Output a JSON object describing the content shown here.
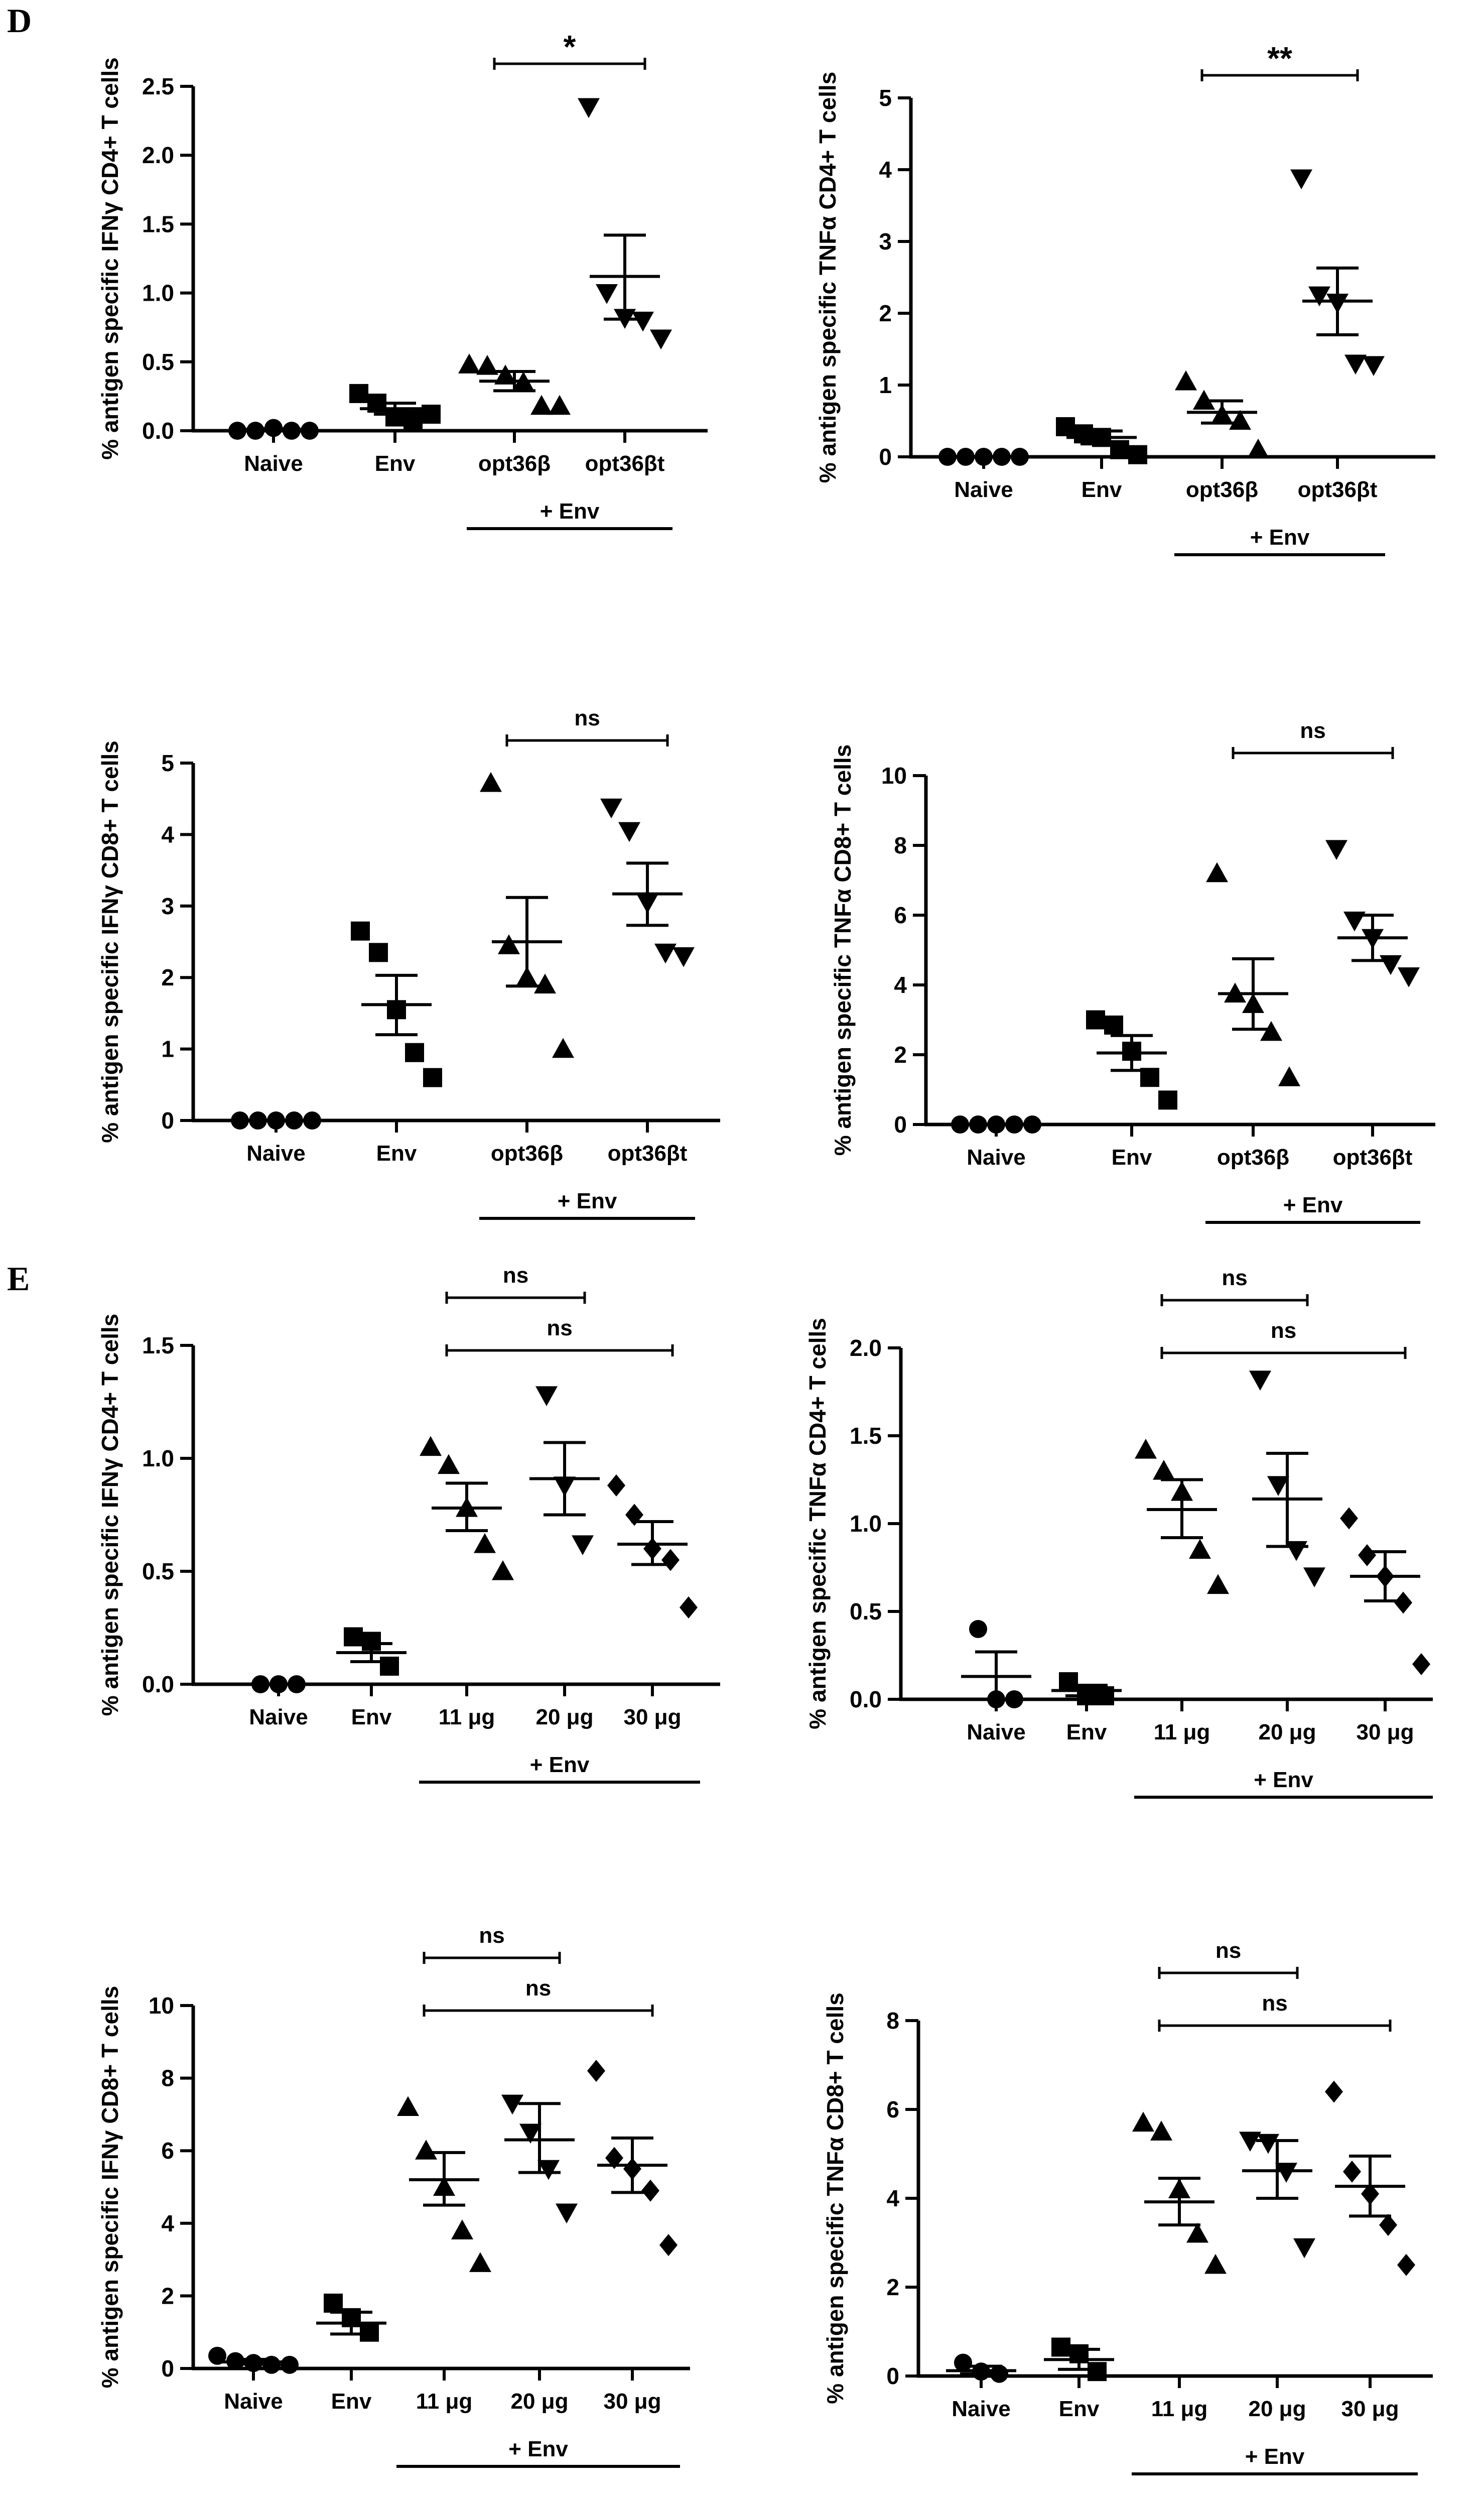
{
  "panels": {
    "D": "D",
    "E": "E"
  },
  "chart_data": [
    {
      "type": "scatter",
      "panel": "D",
      "ylabel": "% antigen specific IFNγ CD4+ T cells",
      "ylim": [
        0,
        2.5
      ],
      "yticks": [
        "0.0",
        "0.5",
        "1.0",
        "1.5",
        "2.0",
        "2.5"
      ],
      "categories": [
        "Naive",
        "Env",
        "opt36β",
        "opt36βt"
      ],
      "bracket": "+ Env",
      "groups": [
        {
          "marker": "circle",
          "points": [
            0,
            0,
            0.02,
            0,
            0
          ],
          "mean": 0.01,
          "sem": [
            0.005,
            0.015
          ]
        },
        {
          "marker": "square",
          "points": [
            0.27,
            0.2,
            0.1,
            0.08,
            0.12
          ],
          "mean": 0.16,
          "sem": [
            0.12,
            0.2
          ]
        },
        {
          "marker": "triangle-up",
          "points": [
            0.48,
            0.47,
            0.4,
            0.35,
            0.18,
            0.18
          ],
          "mean": 0.36,
          "sem": [
            0.29,
            0.43
          ]
        },
        {
          "marker": "triangle-down",
          "points": [
            2.35,
            1.0,
            0.82,
            0.8,
            0.67
          ],
          "mean": 1.12,
          "sem": [
            0.81,
            1.42
          ]
        }
      ],
      "comparisons": [
        {
          "from": "opt36β",
          "to": "opt36βt",
          "label": "*"
        }
      ]
    },
    {
      "type": "scatter",
      "panel": "D",
      "ylabel": "% antigen specific TNFα CD4+ T cells",
      "ylim": [
        0,
        5
      ],
      "yticks": [
        "0",
        "1",
        "2",
        "3",
        "4",
        "5"
      ],
      "categories": [
        "Naive",
        "Env",
        "opt36β",
        "opt36βt"
      ],
      "bracket": "+ Env",
      "groups": [
        {
          "marker": "circle",
          "points": [
            0,
            0,
            0,
            0,
            0
          ],
          "mean": 0,
          "sem": [
            0,
            0
          ]
        },
        {
          "marker": "square",
          "points": [
            0.42,
            0.32,
            0.27,
            0.1,
            0.03
          ],
          "mean": 0.27,
          "sem": [
            0.18,
            0.36
          ]
        },
        {
          "marker": "triangle-up",
          "points": [
            1.05,
            0.78,
            0.58,
            0.5,
            0.1
          ],
          "mean": 0.62,
          "sem": [
            0.47,
            0.78
          ]
        },
        {
          "marker": "triangle-down",
          "points": [
            3.88,
            2.25,
            2.15,
            1.3,
            1.28
          ],
          "mean": 2.17,
          "sem": [
            1.7,
            2.63
          ]
        }
      ],
      "comparisons": [
        {
          "from": "opt36β",
          "to": "opt36βt",
          "label": "**"
        }
      ]
    },
    {
      "type": "scatter",
      "panel": "D",
      "ylabel": "% antigen specific IFNγ CD8+ T cells",
      "ylim": [
        0,
        5
      ],
      "yticks": [
        "0",
        "1",
        "2",
        "3",
        "4",
        "5"
      ],
      "categories": [
        "Naive",
        "Env",
        "opt36β",
        "opt36βt"
      ],
      "bracket": "+ Env",
      "groups": [
        {
          "marker": "circle",
          "points": [
            0,
            0,
            0,
            0,
            0
          ],
          "mean": 0,
          "sem": [
            0,
            0
          ]
        },
        {
          "marker": "square",
          "points": [
            2.65,
            2.35,
            1.55,
            0.95,
            0.6
          ],
          "mean": 1.62,
          "sem": [
            1.2,
            2.03
          ]
        },
        {
          "marker": "triangle-up",
          "points": [
            4.72,
            2.45,
            2.0,
            1.9,
            1.0
          ],
          "mean": 2.5,
          "sem": [
            1.88,
            3.12
          ]
        },
        {
          "marker": "triangle-down",
          "points": [
            4.38,
            4.05,
            3.05,
            2.35,
            2.3
          ],
          "mean": 3.17,
          "sem": [
            2.73,
            3.6
          ]
        }
      ],
      "comparisons": [
        {
          "from": "opt36β",
          "to": "opt36βt",
          "label": "ns"
        }
      ]
    },
    {
      "type": "scatter",
      "panel": "D",
      "ylabel": "% antigen specific TNFα CD8+ T cells",
      "ylim": [
        0,
        10
      ],
      "yticks": [
        "0",
        "2",
        "4",
        "6",
        "8",
        "10"
      ],
      "categories": [
        "Naive",
        "Env",
        "opt36β",
        "opt36βt"
      ],
      "bracket": "+ Env",
      "groups": [
        {
          "marker": "circle",
          "points": [
            0,
            0,
            0,
            0,
            0
          ],
          "mean": 0,
          "sem": [
            0,
            0
          ]
        },
        {
          "marker": "square",
          "points": [
            3.0,
            2.85,
            2.1,
            1.35,
            0.7
          ],
          "mean": 2.05,
          "sem": [
            1.55,
            2.55
          ]
        },
        {
          "marker": "triangle-up",
          "points": [
            7.2,
            3.75,
            3.45,
            2.65,
            1.35
          ],
          "mean": 3.75,
          "sem": [
            2.73,
            4.75
          ]
        },
        {
          "marker": "triangle-down",
          "points": [
            7.9,
            5.85,
            5.35,
            4.6,
            4.25
          ],
          "mean": 5.35,
          "sem": [
            4.7,
            6.0
          ]
        }
      ],
      "comparisons": [
        {
          "from": "opt36β",
          "to": "opt36βt",
          "label": "ns"
        }
      ]
    },
    {
      "type": "scatter",
      "panel": "E",
      "ylabel": "% antigen specific IFNγ CD4+ T cells",
      "ylim": [
        0,
        1.5
      ],
      "yticks": [
        "0.0",
        "0.5",
        "1.0",
        "1.5"
      ],
      "categories": [
        "Naive",
        "Env",
        "11 μg",
        "20 μg",
        "30 μg"
      ],
      "bracket": "+ Env",
      "groups": [
        {
          "marker": "circle",
          "points": [
            0,
            0,
            0
          ],
          "mean": 0,
          "sem": [
            0,
            0
          ]
        },
        {
          "marker": "square",
          "points": [
            0.21,
            0.19,
            0.08
          ],
          "mean": 0.14,
          "sem": [
            0.1,
            0.18
          ]
        },
        {
          "marker": "triangle-up",
          "points": [
            1.05,
            0.97,
            0.78,
            0.62,
            0.5
          ],
          "mean": 0.78,
          "sem": [
            0.68,
            0.89
          ]
        },
        {
          "marker": "triangle-down",
          "points": [
            1.28,
            0.88,
            0.62
          ],
          "mean": 0.91,
          "sem": [
            0.75,
            1.07
          ]
        },
        {
          "marker": "diamond",
          "points": [
            0.88,
            0.75,
            0.6,
            0.55,
            0.34
          ],
          "mean": 0.62,
          "sem": [
            0.53,
            0.72
          ]
        }
      ],
      "comparisons": [
        {
          "from": "11 μg",
          "to": "20 μg",
          "label": "ns"
        },
        {
          "from": "11 μg",
          "to": "30 μg",
          "label": "ns"
        }
      ]
    },
    {
      "type": "scatter",
      "panel": "E",
      "ylabel": "% antigen specific TNFα CD4+ T cells",
      "ylim": [
        0,
        2.0
      ],
      "yticks": [
        "0.0",
        "0.5",
        "1.0",
        "1.5",
        "2.0"
      ],
      "categories": [
        "Naive",
        "Env",
        "11 μg",
        "20 μg",
        "30 μg"
      ],
      "bracket": "+ Env",
      "groups": [
        {
          "marker": "circle",
          "points": [
            0.4,
            0,
            0
          ],
          "mean": 0.13,
          "sem": [
            0,
            0.27
          ]
        },
        {
          "marker": "square",
          "points": [
            0.1,
            0.02,
            0.02
          ],
          "mean": 0.05,
          "sem": [
            0.02,
            0.08
          ]
        },
        {
          "marker": "triangle-up",
          "points": [
            1.42,
            1.3,
            1.18,
            0.85,
            0.65
          ],
          "mean": 1.08,
          "sem": [
            0.92,
            1.25
          ]
        },
        {
          "marker": "triangle-down",
          "points": [
            1.82,
            1.22,
            0.85,
            0.7
          ],
          "mean": 1.14,
          "sem": [
            0.87,
            1.4
          ]
        },
        {
          "marker": "diamond",
          "points": [
            1.03,
            0.82,
            0.7,
            0.55,
            0.2
          ],
          "mean": 0.7,
          "sem": [
            0.56,
            0.84
          ]
        }
      ],
      "comparisons": [
        {
          "from": "11 μg",
          "to": "20 μg",
          "label": "ns"
        },
        {
          "from": "11 μg",
          "to": "30 μg",
          "label": "ns"
        }
      ]
    },
    {
      "type": "scatter",
      "panel": "E",
      "ylabel": "% antigen specific IFNγ CD8+ T cells",
      "ylim": [
        0,
        10
      ],
      "yticks": [
        "0",
        "2",
        "4",
        "6",
        "8",
        "10"
      ],
      "categories": [
        "Naive",
        "Env",
        "11 μg",
        "20 μg",
        "30 μg"
      ],
      "bracket": "+ Env",
      "groups": [
        {
          "marker": "circle",
          "points": [
            0.35,
            0.2,
            0.15,
            0.1,
            0.1
          ],
          "mean": 0.18,
          "sem": [
            0.12,
            0.25
          ]
        },
        {
          "marker": "square",
          "points": [
            1.8,
            1.4,
            1.0
          ],
          "mean": 1.25,
          "sem": [
            0.95,
            1.55
          ]
        },
        {
          "marker": "triangle-up",
          "points": [
            7.2,
            6.0,
            5.0,
            3.8,
            2.9
          ],
          "mean": 5.2,
          "sem": [
            4.5,
            5.95
          ]
        },
        {
          "marker": "triangle-down",
          "points": [
            7.3,
            6.5,
            5.5,
            4.3
          ],
          "mean": 6.3,
          "sem": [
            5.4,
            7.3
          ]
        },
        {
          "marker": "diamond",
          "points": [
            8.2,
            5.8,
            5.5,
            4.9,
            3.4
          ],
          "mean": 5.6,
          "sem": [
            4.85,
            6.35
          ]
        }
      ],
      "comparisons": [
        {
          "from": "11 μg",
          "to": "20 μg",
          "label": "ns"
        },
        {
          "from": "11 μg",
          "to": "30 μg",
          "label": "ns"
        }
      ]
    },
    {
      "type": "scatter",
      "panel": "E",
      "ylabel": "% antigen specific TNFα CD8+ T cells",
      "ylim": [
        0,
        8
      ],
      "yticks": [
        "0",
        "2",
        "4",
        "6",
        "8"
      ],
      "categories": [
        "Naive",
        "Env",
        "11 μg",
        "20 μg",
        "30 μg"
      ],
      "bracket": "+ Env",
      "groups": [
        {
          "marker": "circle",
          "points": [
            0.3,
            0.1,
            0.05
          ],
          "mean": 0.12,
          "sem": [
            0.05,
            0.22
          ]
        },
        {
          "marker": "square",
          "points": [
            0.65,
            0.5,
            0.1
          ],
          "mean": 0.37,
          "sem": [
            0.15,
            0.6
          ]
        },
        {
          "marker": "triangle-up",
          "points": [
            5.7,
            5.5,
            4.2,
            3.2,
            2.5
          ],
          "mean": 3.92,
          "sem": [
            3.4,
            4.45
          ]
        },
        {
          "marker": "triangle-down",
          "points": [
            5.3,
            5.25,
            4.6,
            2.9
          ],
          "mean": 4.62,
          "sem": [
            4.0,
            5.3
          ]
        },
        {
          "marker": "diamond",
          "points": [
            6.4,
            4.6,
            4.1,
            3.4,
            2.5
          ],
          "mean": 4.27,
          "sem": [
            3.6,
            4.95
          ]
        }
      ],
      "comparisons": [
        {
          "from": "11 μg",
          "to": "20 μg",
          "label": "ns"
        },
        {
          "from": "11 μg",
          "to": "30 μg",
          "label": "ns"
        }
      ]
    }
  ]
}
